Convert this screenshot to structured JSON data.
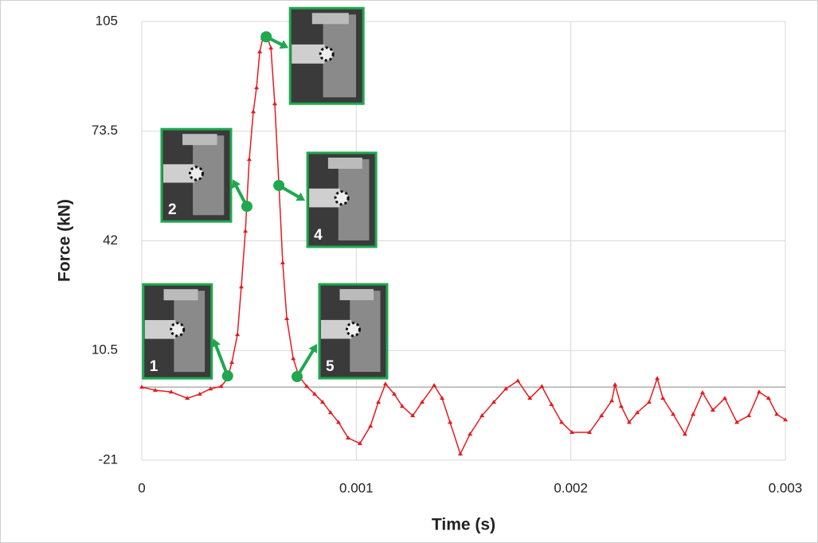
{
  "chart_data": {
    "type": "line",
    "xlabel": "Time (s)",
    "ylabel": "Force (kN)",
    "xlim": [
      0,
      0.003
    ],
    "xticks": [
      0,
      0.001,
      0.002,
      0.003
    ],
    "ylim": [
      -21,
      105
    ],
    "yticks": [
      -21,
      10.5,
      42,
      73.5,
      105
    ],
    "grid": true,
    "series": [
      {
        "color": "#e8191e",
        "x": [
          0,
          6.3e-05,
          0.000137,
          0.000212,
          0.00027,
          0.00032,
          0.00037,
          0.0004,
          0.00042,
          0.000446,
          0.000464,
          0.000483,
          0.000501,
          0.00052,
          0.000535,
          0.00055,
          0.000564,
          0.000583,
          0.000602,
          0.00062,
          0.000639,
          0.000657,
          0.000676,
          0.000706,
          0.000732,
          0.000769,
          0.000806,
          0.000843,
          0.00088,
          0.000917,
          0.000962,
          0.001017,
          0.001066,
          0.001103,
          0.001136,
          0.001177,
          0.001214,
          0.001263,
          0.001307,
          0.001363,
          0.0014,
          0.001437,
          0.001485,
          0.00153,
          0.001586,
          0.001641,
          0.001697,
          0.001753,
          0.001809,
          0.001865,
          0.00191,
          0.001957,
          0.002005,
          0.002087,
          0.002143,
          0.002191,
          0.002206,
          0.002235,
          0.002272,
          0.00231,
          0.002365,
          0.002403,
          0.002429,
          0.002477,
          0.002532,
          0.00257,
          0.002614,
          0.002662,
          0.002718,
          0.002774,
          0.00283,
          0.002878,
          0.002922,
          0.00296,
          0.003
        ],
        "values": [
          0,
          -0.9,
          -1.4,
          -3.2,
          -2,
          -0.5,
          0.2,
          2.5,
          7.1,
          15.1,
          28.8,
          44.8,
          65.4,
          79.1,
          86,
          96.3,
          100.2,
          100.8,
          97.4,
          81.4,
          58.5,
          35.7,
          19.7,
          8.2,
          3.2,
          0.2,
          -2,
          -4.3,
          -7.3,
          -10.1,
          -14.6,
          -16.2,
          -11.2,
          -4.3,
          0.9,
          -2,
          -5.5,
          -8.2,
          -4.3,
          0.5,
          -3.2,
          -10.1,
          -19.2,
          -13.5,
          -8.2,
          -4.3,
          -0.5,
          1.8,
          -3.2,
          0.2,
          -5,
          -10.1,
          -13,
          -13,
          -8.2,
          -3.9,
          0.7,
          -5.5,
          -10.1,
          -7.3,
          -4.3,
          2.5,
          -3.2,
          -7.8,
          -13.5,
          -7.8,
          -1.6,
          -6.6,
          -3.2,
          -10.1,
          -8.2,
          -1.4,
          -3.2,
          -7.8,
          -9.4
        ]
      }
    ],
    "annotations": [
      {
        "label": "1",
        "x": 0.0004,
        "y": 3.2
      },
      {
        "label": "2",
        "x": 0.00049,
        "y": 51.9
      },
      {
        "label": null,
        "x": 0.00058,
        "y": 100.6
      },
      {
        "label": "4",
        "x": 0.000639,
        "y": 57.9
      },
      {
        "label": "5",
        "x": 0.000724,
        "y": 3
      }
    ]
  }
}
